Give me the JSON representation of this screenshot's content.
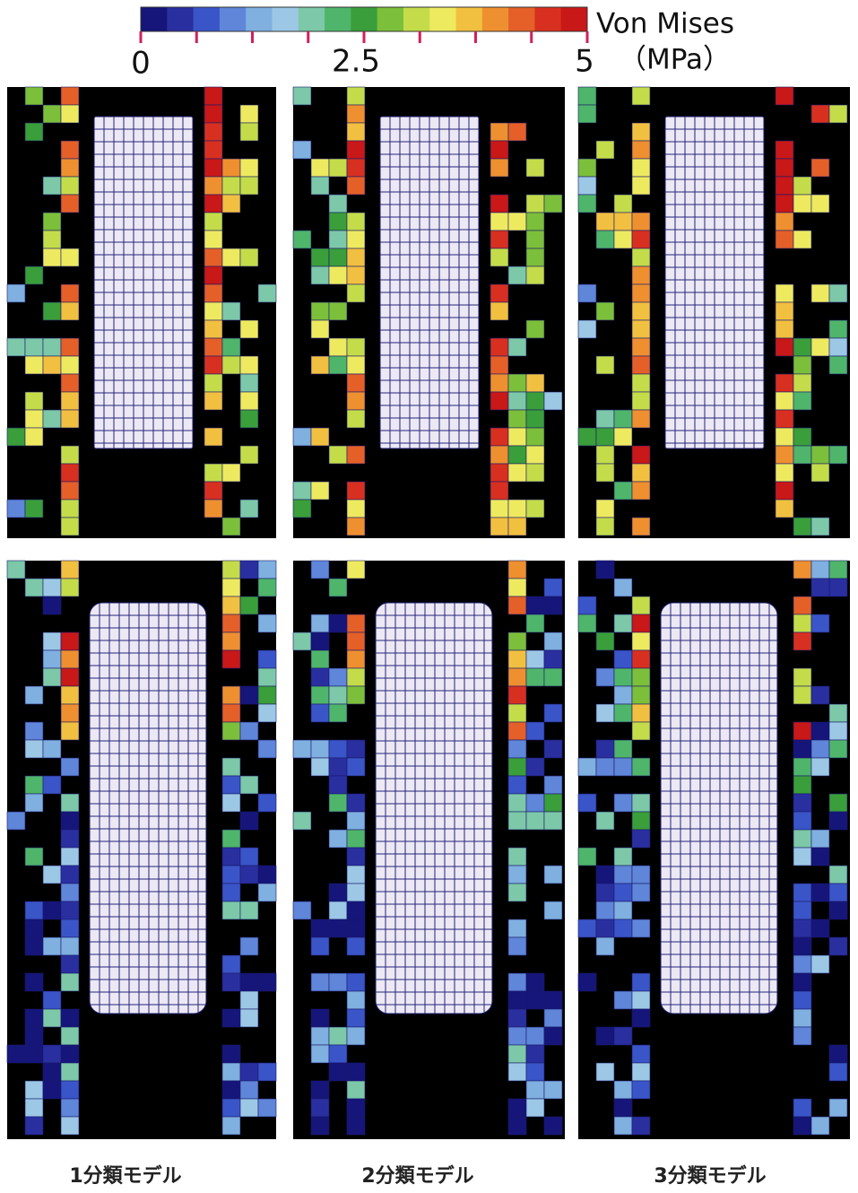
{
  "colorbar": {
    "title": "Von Mises",
    "unit": "（MPa）",
    "labels": [
      "0",
      "2.5",
      "5"
    ]
  },
  "captions": [
    "1分類モデル",
    "2分類モデル",
    "3分類モデル"
  ]
}
